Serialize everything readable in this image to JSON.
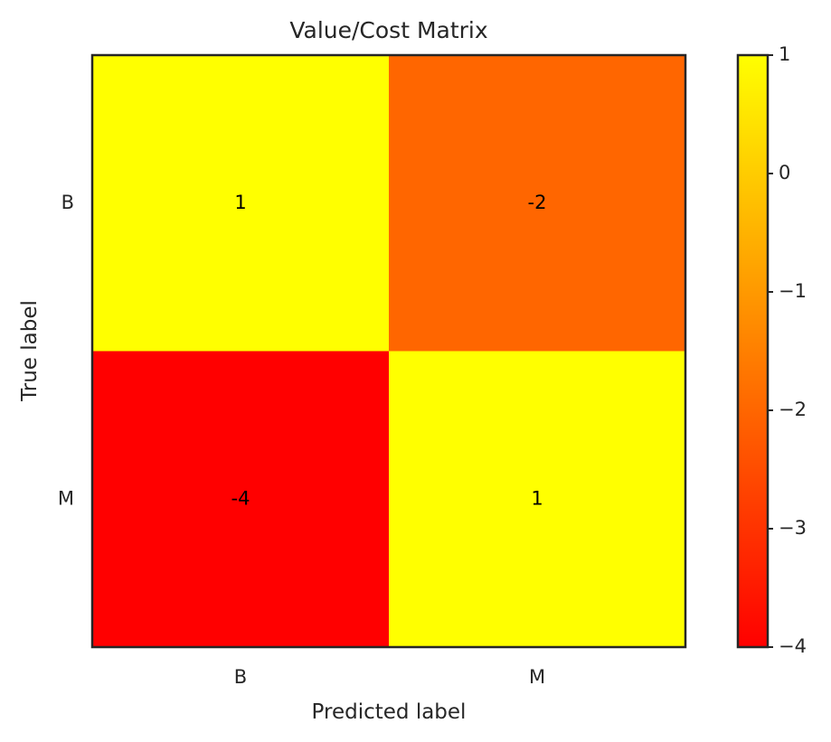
{
  "chart_data": {
    "type": "heatmap",
    "title": "Value/Cost Matrix",
    "xlabel": "Predicted label",
    "ylabel": "True label",
    "x_categories": [
      "B",
      "M"
    ],
    "y_categories": [
      "B",
      "M"
    ],
    "values": [
      [
        1,
        -2
      ],
      [
        -4,
        1
      ]
    ],
    "cell_labels": [
      [
        "1",
        "-2"
      ],
      [
        "-4",
        "1"
      ]
    ],
    "colormap": "autumn",
    "colorbar": {
      "range": [
        -4,
        1
      ],
      "ticks": [
        1,
        0,
        -1,
        -2,
        -3,
        -4
      ],
      "tick_labels": [
        "1",
        "0",
        "−1",
        "−2",
        "−3",
        "−4"
      ]
    }
  },
  "colors": {
    "low": "#ff0000",
    "high": "#ffff00",
    "frame": "#262626"
  }
}
